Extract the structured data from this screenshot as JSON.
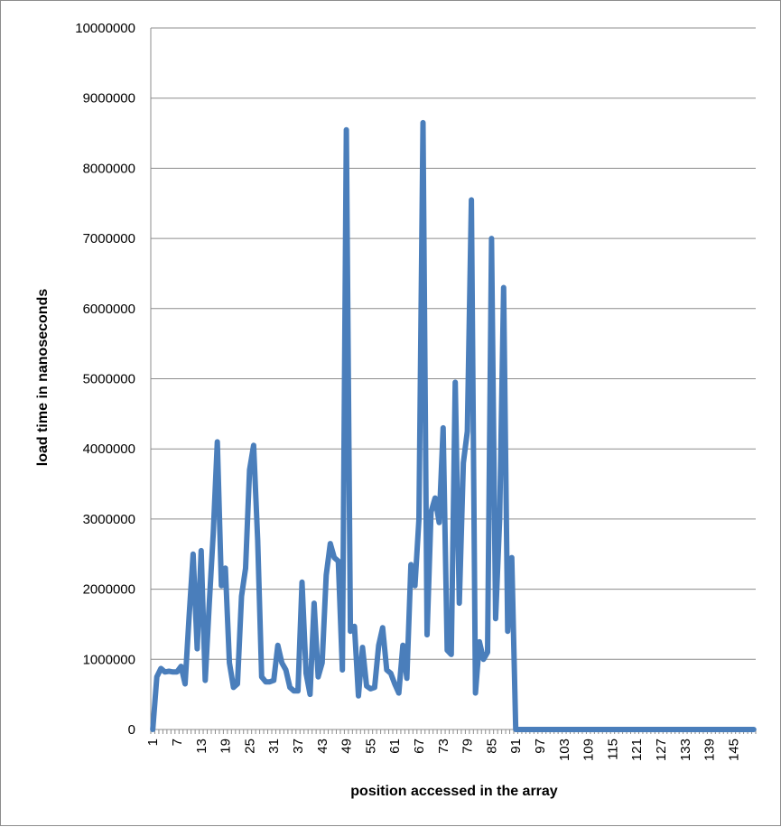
{
  "chart_data": {
    "type": "line",
    "title": "",
    "xlabel": "position accessed in the array",
    "ylabel": "load time in nanoseconds",
    "ylim": [
      0,
      10000000
    ],
    "yticks": [
      0,
      1000000,
      2000000,
      3000000,
      4000000,
      5000000,
      6000000,
      7000000,
      8000000,
      9000000,
      10000000
    ],
    "xlim": [
      1,
      150
    ],
    "xticks": [
      1,
      7,
      13,
      19,
      25,
      31,
      37,
      43,
      49,
      55,
      61,
      67,
      73,
      79,
      85,
      91,
      97,
      103,
      109,
      115,
      121,
      127,
      133,
      139,
      145
    ],
    "grid": true,
    "legend": "none",
    "line_color": "#4a7ebb",
    "grid_color": "#8c8c8c",
    "series": [
      {
        "x": [
          1,
          2,
          3,
          4,
          5,
          6,
          7,
          8,
          9,
          10,
          11,
          12,
          13,
          14,
          15,
          16,
          17,
          18,
          19,
          20,
          21,
          22,
          23,
          24,
          25,
          26,
          27,
          28,
          29,
          30,
          31,
          32,
          33,
          34,
          35,
          36,
          37,
          38,
          39,
          40,
          41,
          42,
          43,
          44,
          45,
          46,
          47,
          48,
          49,
          50,
          51,
          52,
          53,
          54,
          55,
          56,
          57,
          58,
          59,
          60,
          61,
          62,
          63,
          64,
          65,
          66,
          67,
          68,
          69,
          70,
          71,
          72,
          73,
          74,
          75,
          76,
          77,
          78,
          79,
          80,
          81,
          82,
          83,
          84,
          85,
          86,
          87,
          88,
          89,
          90,
          91,
          92,
          150
        ],
        "values": [
          0,
          750000,
          870000,
          820000,
          830000,
          820000,
          820000,
          900000,
          650000,
          1600000,
          2500000,
          1150000,
          2550000,
          700000,
          1800000,
          2800000,
          4100000,
          2050000,
          2300000,
          950000,
          600000,
          650000,
          1900000,
          2300000,
          3700000,
          4050000,
          2700000,
          750000,
          680000,
          680000,
          700000,
          1200000,
          950000,
          850000,
          600000,
          550000,
          550000,
          2100000,
          800000,
          500000,
          1800000,
          750000,
          950000,
          2200000,
          2650000,
          2450000,
          2400000,
          850000,
          8550000,
          1400000,
          1470000,
          480000,
          1170000,
          620000,
          580000,
          600000,
          1200000,
          1450000,
          850000,
          800000,
          650000,
          520000,
          1200000,
          730000,
          2350000,
          2050000,
          3000000,
          8650000,
          1350000,
          3100000,
          3300000,
          2950000,
          4300000,
          1130000,
          1070000,
          4950000,
          1800000,
          3800000,
          4250000,
          7550000,
          520000,
          1250000,
          1000000,
          1100000,
          7000000,
          1580000,
          3000000,
          6300000,
          1400000,
          2450000,
          0,
          0,
          0
        ]
      }
    ]
  }
}
